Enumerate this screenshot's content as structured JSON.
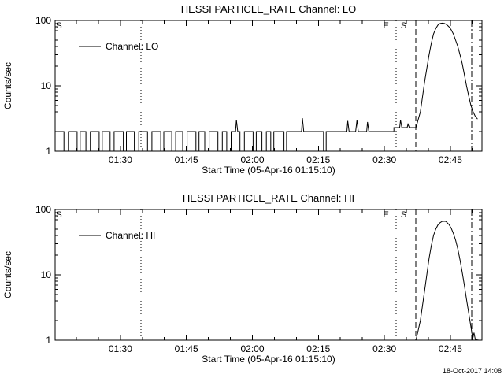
{
  "page": {
    "datestamp": "18-Oct-2017 14:08",
    "background": "#ffffff",
    "line_color": "#000000"
  },
  "chart_data": [
    {
      "type": "line",
      "title": "HESSI PARTICLE_RATE Channel: LO",
      "xlabel": "Start Time (05-Apr-16 01:15:10)",
      "ylabel": "Counts/sec",
      "ylog": true,
      "ylim": [
        1,
        100
      ],
      "xlim_minutes": [
        0,
        97
      ],
      "grid": false,
      "legend": {
        "label": "Channel: LO",
        "position": "upper-left-inside"
      },
      "yticks": [
        {
          "v": 1,
          "label": "1"
        },
        {
          "v": 10,
          "label": "10"
        },
        {
          "v": 100,
          "label": "100"
        }
      ],
      "yticks_minor": [
        2,
        3,
        4,
        5,
        6,
        7,
        8,
        9,
        20,
        30,
        40,
        50,
        60,
        70,
        80,
        90
      ],
      "xticks": [
        {
          "t": 14.83,
          "label": "01:30"
        },
        {
          "t": 29.83,
          "label": "01:45"
        },
        {
          "t": 44.83,
          "label": "02:00"
        },
        {
          "t": 59.83,
          "label": "02:15"
        },
        {
          "t": 74.83,
          "label": "02:30"
        },
        {
          "t": 89.83,
          "label": "02:45"
        }
      ],
      "xticks_minor": [
        4.83,
        9.83,
        19.83,
        24.83,
        34.83,
        39.83,
        49.83,
        54.83,
        64.83,
        69.83,
        79.83,
        84.83,
        94.83
      ],
      "ref_lines": [
        {
          "t": 19.5,
          "style": "dotted"
        },
        {
          "t": 77.5,
          "style": "dotted"
        },
        {
          "t": 82.0,
          "style": "dashed"
        },
        {
          "t": 94.7,
          "style": "dashdot"
        }
      ],
      "annotations": [
        {
          "t": 0.9,
          "text": "S"
        },
        {
          "t": 75.2,
          "text": "E"
        },
        {
          "t": 79.2,
          "text": "S"
        }
      ],
      "series": [
        {
          "name": "Channel: LO",
          "points": [
            [
              0,
              2
            ],
            [
              2,
              2
            ],
            [
              2,
              1
            ],
            [
              3,
              1
            ],
            [
              3,
              2
            ],
            [
              5,
              2
            ],
            [
              5,
              1
            ],
            [
              5.7,
              1
            ],
            [
              5.7,
              2
            ],
            [
              7,
              2
            ],
            [
              7,
              1
            ],
            [
              8,
              1
            ],
            [
              8,
              2
            ],
            [
              10,
              2
            ],
            [
              10,
              1
            ],
            [
              10.7,
              1
            ],
            [
              10.7,
              2
            ],
            [
              12.5,
              2
            ],
            [
              12.5,
              1
            ],
            [
              13.4,
              1
            ],
            [
              13.4,
              2
            ],
            [
              15.5,
              2
            ],
            [
              15.5,
              1
            ],
            [
              16.2,
              1
            ],
            [
              16.2,
              2
            ],
            [
              18,
              2
            ],
            [
              18,
              1
            ],
            [
              19,
              1
            ],
            [
              19,
              2
            ],
            [
              21,
              2
            ],
            [
              21,
              1
            ],
            [
              22,
              1
            ],
            [
              22,
              2
            ],
            [
              24,
              2
            ],
            [
              24,
              1
            ],
            [
              24.7,
              1
            ],
            [
              24.7,
              2
            ],
            [
              26.5,
              2
            ],
            [
              26.5,
              1
            ],
            [
              27.4,
              1
            ],
            [
              27.4,
              2
            ],
            [
              29,
              2
            ],
            [
              29,
              1
            ],
            [
              30,
              1
            ],
            [
              30,
              2
            ],
            [
              32,
              2
            ],
            [
              32,
              1
            ],
            [
              32.7,
              1
            ],
            [
              32.7,
              2
            ],
            [
              34,
              2
            ],
            [
              34,
              1
            ],
            [
              35,
              1
            ],
            [
              35,
              2
            ],
            [
              37,
              2
            ],
            [
              37,
              1
            ],
            [
              38,
              1
            ],
            [
              38,
              2
            ],
            [
              39,
              2
            ],
            [
              39,
              1
            ],
            [
              40,
              1
            ],
            [
              40,
              2
            ],
            [
              41,
              2
            ],
            [
              41.2,
              3
            ],
            [
              41.5,
              2
            ],
            [
              42,
              2
            ],
            [
              42,
              1
            ],
            [
              43,
              1
            ],
            [
              43,
              2
            ],
            [
              45,
              2
            ],
            [
              45,
              1
            ],
            [
              45.7,
              1
            ],
            [
              45.7,
              2
            ],
            [
              47,
              2
            ],
            [
              47,
              1
            ],
            [
              48,
              1
            ],
            [
              48,
              2
            ],
            [
              49,
              2
            ],
            [
              49,
              1
            ],
            [
              49.7,
              1
            ],
            [
              49.7,
              2
            ],
            [
              52,
              2
            ],
            [
              52,
              1
            ],
            [
              52.6,
              1
            ],
            [
              52.6,
              2
            ],
            [
              56,
              2
            ],
            [
              56.2,
              3.2
            ],
            [
              56.5,
              2
            ],
            [
              61,
              2
            ],
            [
              61,
              1
            ],
            [
              61.6,
              1
            ],
            [
              61.6,
              2
            ],
            [
              66.3,
              2
            ],
            [
              66.5,
              2.9
            ],
            [
              66.8,
              2
            ],
            [
              68.3,
              2
            ],
            [
              68.6,
              3
            ],
            [
              68.9,
              2
            ],
            [
              70.8,
              2
            ],
            [
              71,
              2.8
            ],
            [
              71.3,
              2
            ],
            [
              77,
              2
            ],
            [
              77,
              2.3
            ],
            [
              78.3,
              2.3
            ],
            [
              78.5,
              3
            ],
            [
              78.8,
              2.3
            ],
            [
              80,
              2.3
            ],
            [
              80.2,
              2.6
            ],
            [
              80.5,
              2.3
            ],
            [
              82,
              2.3
            ],
            [
              83,
              4
            ],
            [
              84,
              12
            ],
            [
              85,
              30
            ],
            [
              85.5,
              45
            ],
            [
              86,
              62
            ],
            [
              86.5,
              75
            ],
            [
              87,
              85
            ],
            [
              87.5,
              90
            ],
            [
              88,
              91
            ],
            [
              88.5,
              90
            ],
            [
              89,
              86
            ],
            [
              89.5,
              80
            ],
            [
              90,
              72
            ],
            [
              90.5,
              62
            ],
            [
              91,
              50
            ],
            [
              91.5,
              40
            ],
            [
              92,
              30
            ],
            [
              92.5,
              22
            ],
            [
              93,
              15
            ],
            [
              93.5,
              10
            ],
            [
              94,
              7
            ],
            [
              94.5,
              5
            ],
            [
              95,
              4
            ],
            [
              95.5,
              3.4
            ],
            [
              96,
              3.1
            ]
          ]
        }
      ]
    },
    {
      "type": "line",
      "title": "HESSI PARTICLE_RATE Channel: HI",
      "xlabel": "Start Time (05-Apr-16 01:15:10)",
      "ylabel": "Counts/sec",
      "ylog": true,
      "ylim": [
        1,
        100
      ],
      "xlim_minutes": [
        0,
        97
      ],
      "grid": false,
      "legend": {
        "label": "Channel: HI",
        "position": "upper-left-inside"
      },
      "yticks": [
        {
          "v": 1,
          "label": "1"
        },
        {
          "v": 10,
          "label": "10"
        },
        {
          "v": 100,
          "label": "100"
        }
      ],
      "yticks_minor": [
        2,
        3,
        4,
        5,
        6,
        7,
        8,
        9,
        20,
        30,
        40,
        50,
        60,
        70,
        80,
        90
      ],
      "xticks": [
        {
          "t": 14.83,
          "label": "01:30"
        },
        {
          "t": 29.83,
          "label": "01:45"
        },
        {
          "t": 44.83,
          "label": "02:00"
        },
        {
          "t": 59.83,
          "label": "02:15"
        },
        {
          "t": 74.83,
          "label": "02:30"
        },
        {
          "t": 89.83,
          "label": "02:45"
        }
      ],
      "xticks_minor": [
        4.83,
        9.83,
        19.83,
        24.83,
        34.83,
        39.83,
        49.83,
        54.83,
        64.83,
        69.83,
        79.83,
        84.83,
        94.83
      ],
      "ref_lines": [
        {
          "t": 19.5,
          "style": "dotted"
        },
        {
          "t": 77.5,
          "style": "dotted"
        },
        {
          "t": 82.0,
          "style": "dashed"
        },
        {
          "t": 94.7,
          "style": "dashdot"
        }
      ],
      "annotations": [
        {
          "t": 0.9,
          "text": "S"
        },
        {
          "t": 75.2,
          "text": "E"
        },
        {
          "t": 79.2,
          "text": "S"
        }
      ],
      "series": [
        {
          "name": "Channel: HI",
          "points": [
            [
              0,
              1
            ],
            [
              82,
              1
            ],
            [
              83,
              2
            ],
            [
              84,
              6
            ],
            [
              85,
              18
            ],
            [
              85.5,
              28
            ],
            [
              86,
              40
            ],
            [
              86.5,
              50
            ],
            [
              87,
              58
            ],
            [
              87.5,
              63
            ],
            [
              88,
              66
            ],
            [
              88.7,
              66
            ],
            [
              89,
              64
            ],
            [
              89.5,
              59
            ],
            [
              90,
              52
            ],
            [
              90.5,
              43
            ],
            [
              91,
              34
            ],
            [
              91.5,
              25
            ],
            [
              92,
              17
            ],
            [
              92.5,
              11
            ],
            [
              93,
              7
            ],
            [
              93.5,
              4.2
            ],
            [
              94,
              2.6
            ],
            [
              94.5,
              1.6
            ],
            [
              94.9,
              1.05
            ],
            [
              95.2,
              1.3
            ],
            [
              95.5,
              1.02
            ],
            [
              96.3,
              1
            ]
          ]
        }
      ]
    }
  ]
}
